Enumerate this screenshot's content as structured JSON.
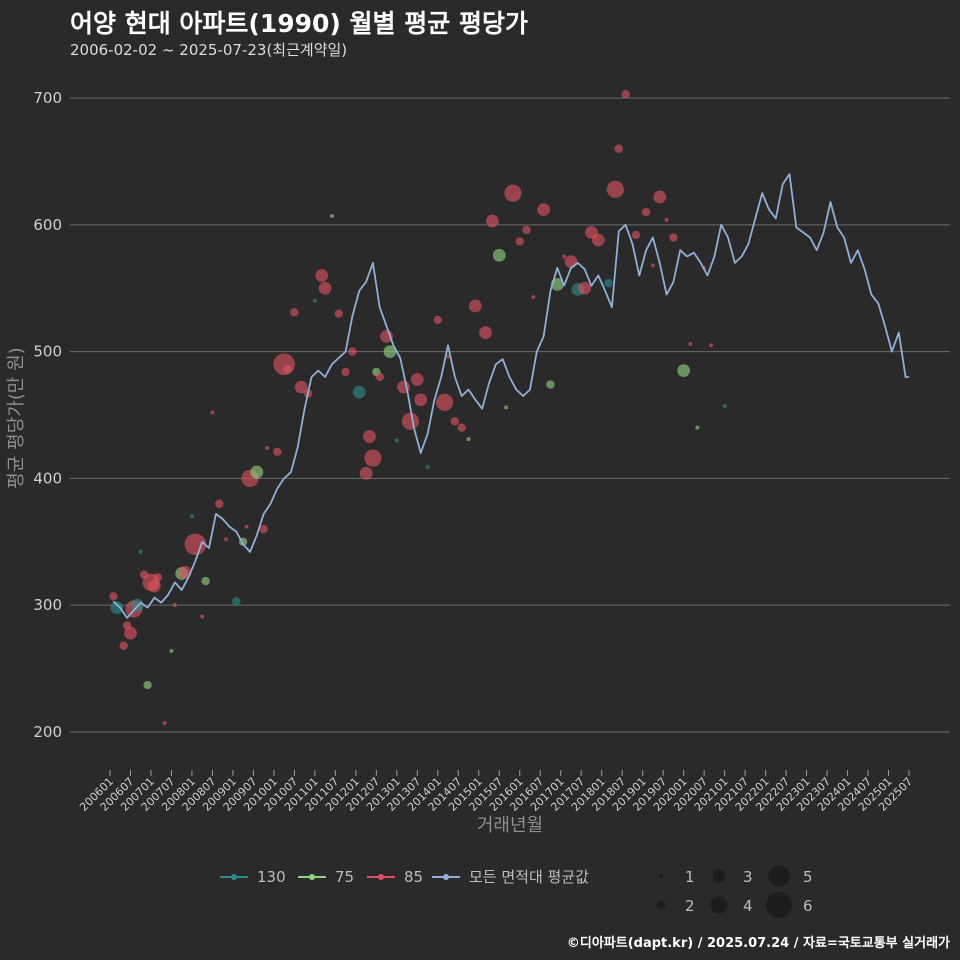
{
  "title": "어양 현대 아파트(1990) 월별 평균 평당가",
  "subtitle": "2006-02-02 ~ 2025-07-23(최근계약일)",
  "caption": "©디아파트(dapt.kr) / 2025.07.24 / 자료=국토교통부 실거래가",
  "colors": {
    "background": "#2a2a2b",
    "grid": "#6a6a6a",
    "s130": "#2a8c8c",
    "s75": "#8fd47f",
    "s85": "#e05260",
    "avg": "#8fb0d8"
  },
  "chart_data": {
    "type": "scatter",
    "xlabel": "거래년월",
    "ylabel": "평균 평당가(만 원)",
    "ylim": [
      170,
      730
    ],
    "y_ticks": [
      200,
      300,
      400,
      500,
      600,
      700
    ],
    "x_ticks": [
      "200601",
      "200607",
      "200701",
      "200707",
      "200801",
      "200807",
      "200901",
      "200907",
      "201001",
      "201007",
      "201101",
      "201107",
      "201201",
      "201207",
      "201301",
      "201307",
      "201401",
      "201407",
      "201501",
      "201507",
      "201601",
      "201607",
      "201701",
      "201707",
      "201801",
      "201807",
      "201901",
      "201907",
      "202001",
      "202007",
      "202101",
      "202107",
      "202201",
      "202207",
      "202301",
      "202307",
      "202401",
      "202407",
      "202501",
      "202507"
    ],
    "legend_series": [
      {
        "name": "130",
        "color": "#2a8c8c"
      },
      {
        "name": "75",
        "color": "#8fd47f"
      },
      {
        "name": "85",
        "color": "#e05260"
      },
      {
        "name": "모든 면적대 평균값",
        "color": "#8fb0d8"
      }
    ],
    "size_legend": [
      "1",
      "2",
      "3",
      "4",
      "5",
      "6"
    ],
    "avg_line": [
      [
        "2006-02",
        303
      ],
      [
        "2006-04",
        298
      ],
      [
        "2006-06",
        290
      ],
      [
        "2006-08",
        296
      ],
      [
        "2006-10",
        302
      ],
      [
        "2006-12",
        298
      ],
      [
        "2007-02",
        306
      ],
      [
        "2007-04",
        302
      ],
      [
        "2007-06",
        308
      ],
      [
        "2007-08",
        318
      ],
      [
        "2007-10",
        312
      ],
      [
        "2007-12",
        322
      ],
      [
        "2008-02",
        335
      ],
      [
        "2008-04",
        350
      ],
      [
        "2008-06",
        345
      ],
      [
        "2008-08",
        372
      ],
      [
        "2008-10",
        368
      ],
      [
        "2008-12",
        362
      ],
      [
        "2009-02",
        358
      ],
      [
        "2009-04",
        348
      ],
      [
        "2009-06",
        342
      ],
      [
        "2009-08",
        355
      ],
      [
        "2009-10",
        372
      ],
      [
        "2009-12",
        380
      ],
      [
        "2010-02",
        392
      ],
      [
        "2010-04",
        400
      ],
      [
        "2010-06",
        405
      ],
      [
        "2010-08",
        425
      ],
      [
        "2010-10",
        455
      ],
      [
        "2010-12",
        480
      ],
      [
        "2011-02",
        485
      ],
      [
        "2011-04",
        480
      ],
      [
        "2011-06",
        490
      ],
      [
        "2011-08",
        495
      ],
      [
        "2011-10",
        500
      ],
      [
        "2011-12",
        528
      ],
      [
        "2012-02",
        548
      ],
      [
        "2012-04",
        555
      ],
      [
        "2012-06",
        570
      ],
      [
        "2012-08",
        535
      ],
      [
        "2012-10",
        520
      ],
      [
        "2012-12",
        505
      ],
      [
        "2013-02",
        495
      ],
      [
        "2013-04",
        470
      ],
      [
        "2013-06",
        440
      ],
      [
        "2013-08",
        420
      ],
      [
        "2013-10",
        435
      ],
      [
        "2013-12",
        462
      ],
      [
        "2014-02",
        480
      ],
      [
        "2014-04",
        505
      ],
      [
        "2014-06",
        480
      ],
      [
        "2014-08",
        465
      ],
      [
        "2014-10",
        470
      ],
      [
        "2014-12",
        462
      ],
      [
        "2015-02",
        455
      ],
      [
        "2015-04",
        475
      ],
      [
        "2015-06",
        490
      ],
      [
        "2015-08",
        494
      ],
      [
        "2015-10",
        480
      ],
      [
        "2015-12",
        470
      ],
      [
        "2016-02",
        465
      ],
      [
        "2016-04",
        470
      ],
      [
        "2016-06",
        500
      ],
      [
        "2016-08",
        512
      ],
      [
        "2016-10",
        548
      ],
      [
        "2016-12",
        566
      ],
      [
        "2017-02",
        552
      ],
      [
        "2017-04",
        566
      ],
      [
        "2017-06",
        570
      ],
      [
        "2017-08",
        565
      ],
      [
        "2017-10",
        552
      ],
      [
        "2017-12",
        560
      ],
      [
        "2018-02",
        548
      ],
      [
        "2018-04",
        535
      ],
      [
        "2018-06",
        595
      ],
      [
        "2018-08",
        600
      ],
      [
        "2018-10",
        585
      ],
      [
        "2018-12",
        560
      ],
      [
        "2019-02",
        580
      ],
      [
        "2019-04",
        590
      ],
      [
        "2019-06",
        570
      ],
      [
        "2019-08",
        545
      ],
      [
        "2019-10",
        555
      ],
      [
        "2019-12",
        580
      ],
      [
        "2020-02",
        575
      ],
      [
        "2020-04",
        578
      ],
      [
        "2020-06",
        570
      ],
      [
        "2020-08",
        560
      ],
      [
        "2020-10",
        575
      ],
      [
        "2020-12",
        600
      ],
      [
        "2021-02",
        590
      ],
      [
        "2021-04",
        570
      ],
      [
        "2021-06",
        575
      ],
      [
        "2021-08",
        585
      ],
      [
        "2021-10",
        605
      ],
      [
        "2021-12",
        625
      ],
      [
        "2022-02",
        612
      ],
      [
        "2022-04",
        605
      ],
      [
        "2022-06",
        632
      ],
      [
        "2022-08",
        640
      ],
      [
        "2022-10",
        598
      ],
      [
        "2022-12",
        594
      ],
      [
        "2023-02",
        590
      ],
      [
        "2023-04",
        580
      ],
      [
        "2023-06",
        594
      ],
      [
        "2023-08",
        618
      ],
      [
        "2023-10",
        598
      ],
      [
        "2023-12",
        590
      ],
      [
        "2024-02",
        570
      ],
      [
        "2024-04",
        580
      ],
      [
        "2024-06",
        565
      ],
      [
        "2024-08",
        545
      ],
      [
        "2024-10",
        538
      ],
      [
        "2024-12",
        520
      ],
      [
        "2025-02",
        500
      ],
      [
        "2025-04",
        515
      ],
      [
        "2025-06",
        480
      ],
      [
        "2025-07",
        480
      ]
    ],
    "points": [
      [
        "2006-02",
        307,
        2,
        "85"
      ],
      [
        "2006-03",
        298,
        3,
        "130"
      ],
      [
        "2006-05",
        268,
        2,
        "85"
      ],
      [
        "2006-06",
        284,
        2,
        "85"
      ],
      [
        "2006-07",
        278,
        3,
        "85"
      ],
      [
        "2006-08",
        297,
        4,
        "85"
      ],
      [
        "2006-09",
        300,
        3,
        "130"
      ],
      [
        "2006-10",
        342,
        1,
        "130"
      ],
      [
        "2006-11",
        324,
        2,
        "85"
      ],
      [
        "2006-12",
        237,
        2,
        "75"
      ],
      [
        "2007-01",
        318,
        4,
        "85"
      ],
      [
        "2007-02",
        315,
        3,
        "85"
      ],
      [
        "2007-03",
        322,
        2,
        "85"
      ],
      [
        "2007-05",
        207,
        1,
        "85"
      ],
      [
        "2007-07",
        264,
        1,
        "75"
      ],
      [
        "2007-08",
        300,
        1,
        "85"
      ],
      [
        "2007-10",
        325,
        3,
        "75"
      ],
      [
        "2007-11",
        326,
        3,
        "85"
      ],
      [
        "2008-01",
        370,
        1,
        "130"
      ],
      [
        "2008-02",
        348,
        5,
        "85"
      ],
      [
        "2008-04",
        291,
        1,
        "85"
      ],
      [
        "2008-05",
        319,
        2,
        "75"
      ],
      [
        "2008-07",
        452,
        1,
        "85"
      ],
      [
        "2008-09",
        380,
        2,
        "85"
      ],
      [
        "2008-11",
        352,
        1,
        "85"
      ],
      [
        "2009-02",
        303,
        2,
        "130"
      ],
      [
        "2009-04",
        350,
        2,
        "75"
      ],
      [
        "2009-05",
        362,
        1,
        "85"
      ],
      [
        "2009-06",
        400,
        4,
        "85"
      ],
      [
        "2009-08",
        405,
        3,
        "75"
      ],
      [
        "2009-10",
        360,
        2,
        "85"
      ],
      [
        "2009-11",
        424,
        1,
        "85"
      ],
      [
        "2010-02",
        421,
        2,
        "85"
      ],
      [
        "2010-04",
        490,
        5,
        "85"
      ],
      [
        "2010-05",
        486,
        2,
        "85"
      ],
      [
        "2010-07",
        531,
        2,
        "85"
      ],
      [
        "2010-09",
        472,
        3,
        "85"
      ],
      [
        "2010-11",
        467,
        2,
        "85"
      ],
      [
        "2011-01",
        540,
        1,
        "130"
      ],
      [
        "2011-03",
        560,
        3,
        "85"
      ],
      [
        "2011-04",
        550,
        3,
        "85"
      ],
      [
        "2011-06",
        607,
        1,
        "75"
      ],
      [
        "2011-08",
        530,
        2,
        "85"
      ],
      [
        "2011-10",
        484,
        2,
        "85"
      ],
      [
        "2011-12",
        500,
        2,
        "85"
      ],
      [
        "2012-02",
        468,
        3,
        "130"
      ],
      [
        "2012-04",
        404,
        3,
        "85"
      ],
      [
        "2012-05",
        433,
        3,
        "85"
      ],
      [
        "2012-06",
        416,
        4,
        "85"
      ],
      [
        "2012-07",
        484,
        2,
        "75"
      ],
      [
        "2012-08",
        480,
        2,
        "85"
      ],
      [
        "2012-10",
        512,
        3,
        "85"
      ],
      [
        "2012-11",
        500,
        3,
        "75"
      ],
      [
        "2013-01",
        430,
        1,
        "130"
      ],
      [
        "2013-03",
        472,
        3,
        "85"
      ],
      [
        "2013-05",
        445,
        4,
        "85"
      ],
      [
        "2013-07",
        478,
        3,
        "85"
      ],
      [
        "2013-08",
        462,
        3,
        "85"
      ],
      [
        "2013-10",
        409,
        1,
        "130"
      ],
      [
        "2014-01",
        525,
        2,
        "85"
      ],
      [
        "2014-03",
        460,
        4,
        "85"
      ],
      [
        "2014-04",
        496,
        1,
        "85"
      ],
      [
        "2014-06",
        445,
        2,
        "85"
      ],
      [
        "2014-08",
        440,
        2,
        "85"
      ],
      [
        "2014-10",
        431,
        1,
        "75"
      ],
      [
        "2014-12",
        536,
        3,
        "85"
      ],
      [
        "2015-03",
        515,
        3,
        "85"
      ],
      [
        "2015-05",
        603,
        3,
        "85"
      ],
      [
        "2015-07",
        576,
        3,
        "75"
      ],
      [
        "2015-09",
        456,
        1,
        "75"
      ],
      [
        "2015-11",
        625,
        4,
        "85"
      ],
      [
        "2016-01",
        587,
        2,
        "85"
      ],
      [
        "2016-03",
        596,
        2,
        "85"
      ],
      [
        "2016-05",
        543,
        1,
        "85"
      ],
      [
        "2016-08",
        612,
        3,
        "85"
      ],
      [
        "2016-10",
        474,
        2,
        "75"
      ],
      [
        "2016-12",
        553,
        3,
        "75"
      ],
      [
        "2017-02",
        575,
        1,
        "85"
      ],
      [
        "2017-04",
        571,
        3,
        "85"
      ],
      [
        "2017-06",
        549,
        3,
        "130"
      ],
      [
        "2017-08",
        550,
        3,
        "85"
      ],
      [
        "2017-10",
        594,
        3,
        "85"
      ],
      [
        "2017-12",
        588,
        3,
        "85"
      ],
      [
        "2018-03",
        554,
        2,
        "130"
      ],
      [
        "2018-05",
        628,
        4,
        "85"
      ],
      [
        "2018-06",
        660,
        2,
        "85"
      ],
      [
        "2018-08",
        703,
        2,
        "85"
      ],
      [
        "2018-11",
        592,
        2,
        "85"
      ],
      [
        "2019-02",
        610,
        2,
        "85"
      ],
      [
        "2019-04",
        568,
        1,
        "85"
      ],
      [
        "2019-06",
        622,
        3,
        "85"
      ],
      [
        "2019-08",
        604,
        1,
        "85"
      ],
      [
        "2019-10",
        590,
        2,
        "85"
      ],
      [
        "2020-01",
        485,
        3,
        "75"
      ],
      [
        "2020-03",
        506,
        1,
        "85"
      ],
      [
        "2020-05",
        440,
        1,
        "75"
      ],
      [
        "2020-07",
        566,
        1,
        "85"
      ],
      [
        "2020-09",
        505,
        1,
        "85"
      ],
      [
        "2021-01",
        457,
        1,
        "130"
      ]
    ]
  }
}
